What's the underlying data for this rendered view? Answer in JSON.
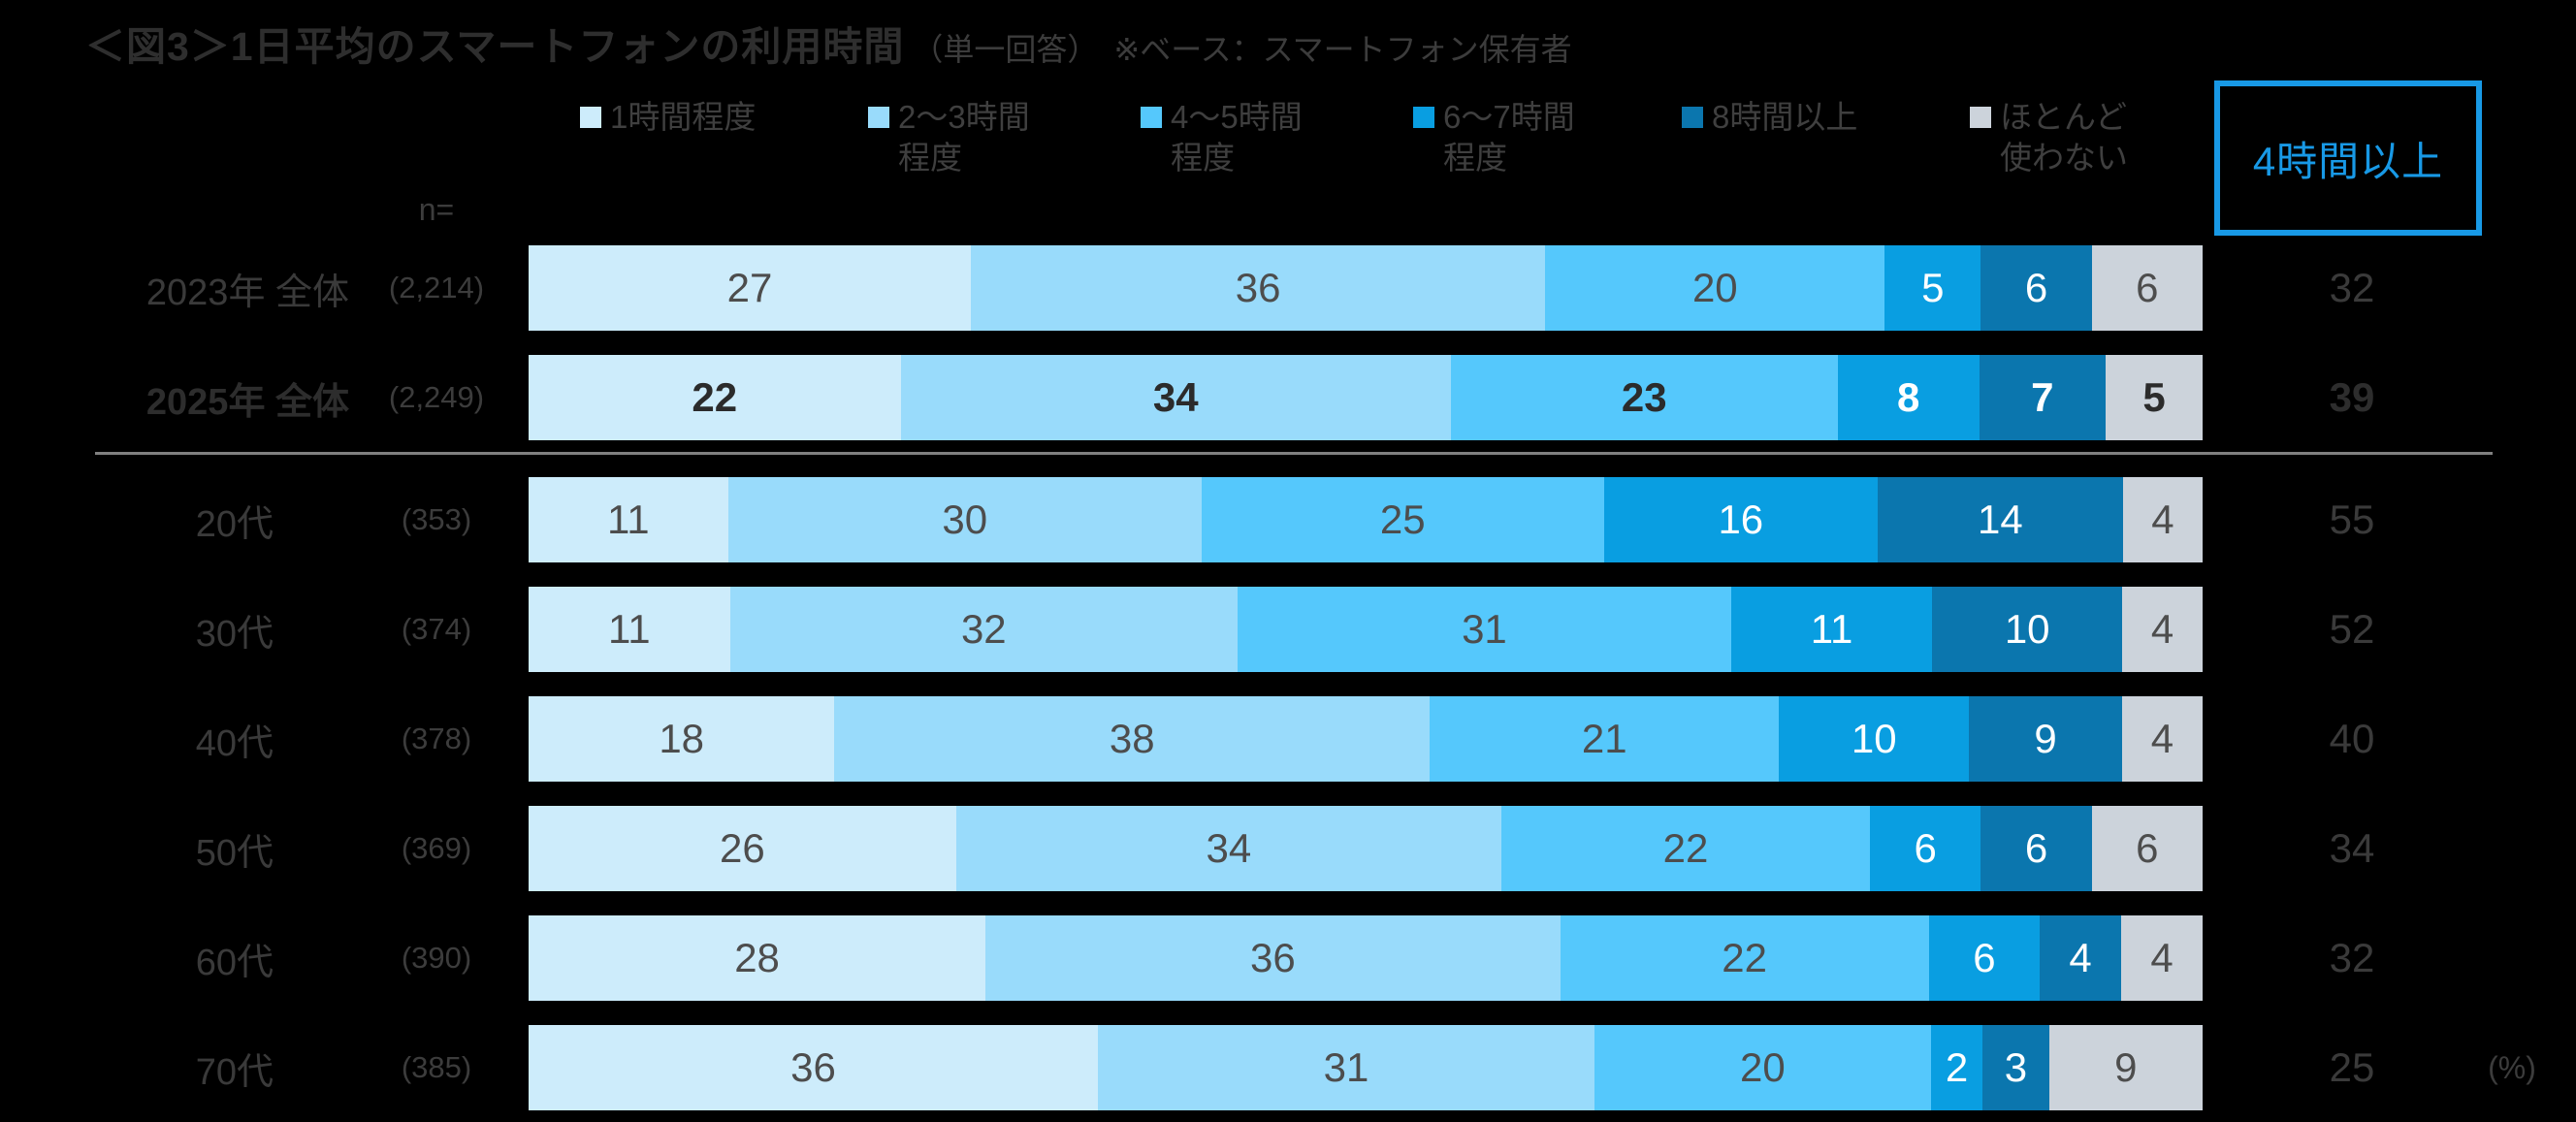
{
  "title": {
    "main": "＜図3＞1日平均のスマートフォンの利用時間",
    "sub": "（単一回答）　※ベース：スマートフォン保有者"
  },
  "n_header": "n=",
  "unit_label": "(%)",
  "highlight_box": {
    "label": "4時間以上",
    "color": "#1899e6"
  },
  "legend": [
    {
      "line1": "1時間程度",
      "line2": "",
      "color": "#cdecfb"
    },
    {
      "line1": "2〜3時間",
      "line2": "程度",
      "color": "#99dbfb"
    },
    {
      "line1": "4〜5時間",
      "line2": "程度",
      "color": "#55c8fc"
    },
    {
      "line1": "6〜7時間",
      "line2": "程度",
      "color": "#099ee1"
    },
    {
      "line1": "8時間以上",
      "line2": "",
      "color": "#0b76ae"
    },
    {
      "line1": "ほとんど",
      "line2": "使わない",
      "color": "#ccd3db"
    }
  ],
  "chart_data": {
    "type": "bar",
    "stacked": true,
    "orientation": "horizontal",
    "unit": "%",
    "title": "＜図3＞1日平均のスマートフォンの利用時間（単一回答）※ベース：スマートフォン保有者",
    "segment_labels": [
      "1時間程度",
      "2〜3時間程度",
      "4〜5時間程度",
      "6〜7時間程度",
      "8時間以上",
      "ほとんど使わない"
    ],
    "segment_colors": [
      "#cdecfb",
      "#99dbfb",
      "#55c8fc",
      "#099ee1",
      "#0b76ae",
      "#ccd3db"
    ],
    "extra_column_label": "4時間以上",
    "rows": [
      {
        "label": "2023年 全体",
        "n": "(2,214)",
        "values": [
          27,
          36,
          20,
          5,
          6,
          6
        ],
        "four_hours_plus": "32",
        "emphasis": false,
        "is_age": false
      },
      {
        "label": "2025年 全体",
        "n": "(2,249)",
        "values": [
          22,
          34,
          23,
          8,
          7,
          5
        ],
        "four_hours_plus": "39",
        "emphasis": true,
        "is_age": false
      },
      {
        "label": "20代",
        "n": "(353)",
        "values": [
          11,
          30,
          25,
          16,
          14,
          4
        ],
        "four_hours_plus": "55",
        "emphasis": false,
        "is_age": true
      },
      {
        "label": "30代",
        "n": "(374)",
        "values": [
          11,
          32,
          31,
          11,
          10,
          4
        ],
        "four_hours_plus": "52",
        "emphasis": false,
        "is_age": true
      },
      {
        "label": "40代",
        "n": "(378)",
        "values": [
          18,
          38,
          21,
          10,
          9,
          4
        ],
        "four_hours_plus": "40",
        "emphasis": false,
        "is_age": true
      },
      {
        "label": "50代",
        "n": "(369)",
        "values": [
          26,
          34,
          22,
          6,
          6,
          6
        ],
        "four_hours_plus": "34",
        "emphasis": false,
        "is_age": true
      },
      {
        "label": "60代",
        "n": "(390)",
        "values": [
          28,
          36,
          22,
          6,
          4,
          4
        ],
        "four_hours_plus": "32",
        "emphasis": false,
        "is_age": true
      },
      {
        "label": "70代",
        "n": "(385)",
        "values": [
          36,
          31,
          20,
          2,
          3,
          9
        ],
        "four_hours_plus": "25",
        "emphasis": false,
        "is_age": true
      }
    ]
  }
}
